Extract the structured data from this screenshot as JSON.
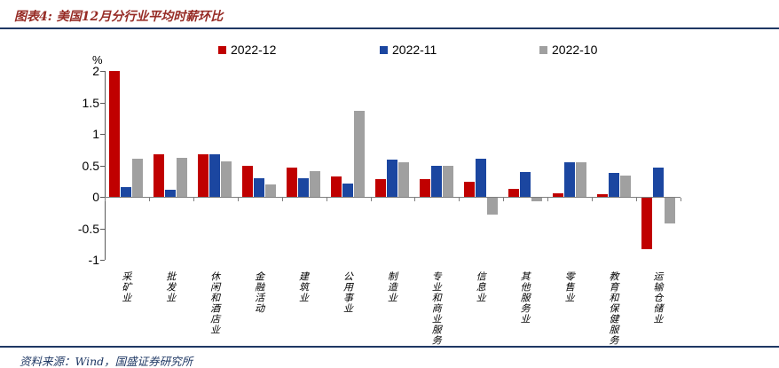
{
  "header": {
    "title": "图表4: 美国12月分行业平均时薪环比"
  },
  "footer": {
    "source": "资料来源：Wind，国盛证券研究所"
  },
  "colors": {
    "title_red": "#962b25",
    "rule_navy": "#1f3864",
    "series_red": "#c00000",
    "series_blue": "#1b46a0",
    "series_gray": "#a0a0a0",
    "axis_gray": "#595959"
  },
  "chart_data": {
    "type": "bar",
    "unit_label": "%",
    "title": "美国12月分行业平均时薪环比",
    "categories": [
      "采矿业",
      "批发业",
      "休闲和酒店业",
      "金融活动",
      "建筑业",
      "公用事业",
      "制造业",
      "专业和商业服务",
      "信息业",
      "其他服务业",
      "零售业",
      "教育和保健服务",
      "运输仓储业"
    ],
    "series": [
      {
        "name": "2022-12",
        "color": "#c00000",
        "values": [
          2.0,
          0.67,
          0.67,
          0.5,
          0.46,
          0.33,
          0.28,
          0.28,
          0.24,
          0.13,
          0.06,
          0.04,
          -0.81
        ]
      },
      {
        "name": "2022-11",
        "color": "#1b46a0",
        "values": [
          0.15,
          0.11,
          0.67,
          0.29,
          0.29,
          0.21,
          0.59,
          0.49,
          0.6,
          0.4,
          0.55,
          0.38,
          0.46
        ]
      },
      {
        "name": "2022-10",
        "color": "#a0a0a0",
        "values": [
          0.6,
          0.62,
          0.57,
          0.2,
          0.41,
          1.37,
          0.55,
          0.5,
          -0.27,
          -0.05,
          0.55,
          0.34,
          -0.41
        ]
      }
    ],
    "ylim": [
      -1,
      2
    ],
    "yticks": [
      2,
      1.5,
      1,
      0.5,
      0,
      -0.5,
      -1
    ],
    "grid": false,
    "legend_position": "top"
  }
}
